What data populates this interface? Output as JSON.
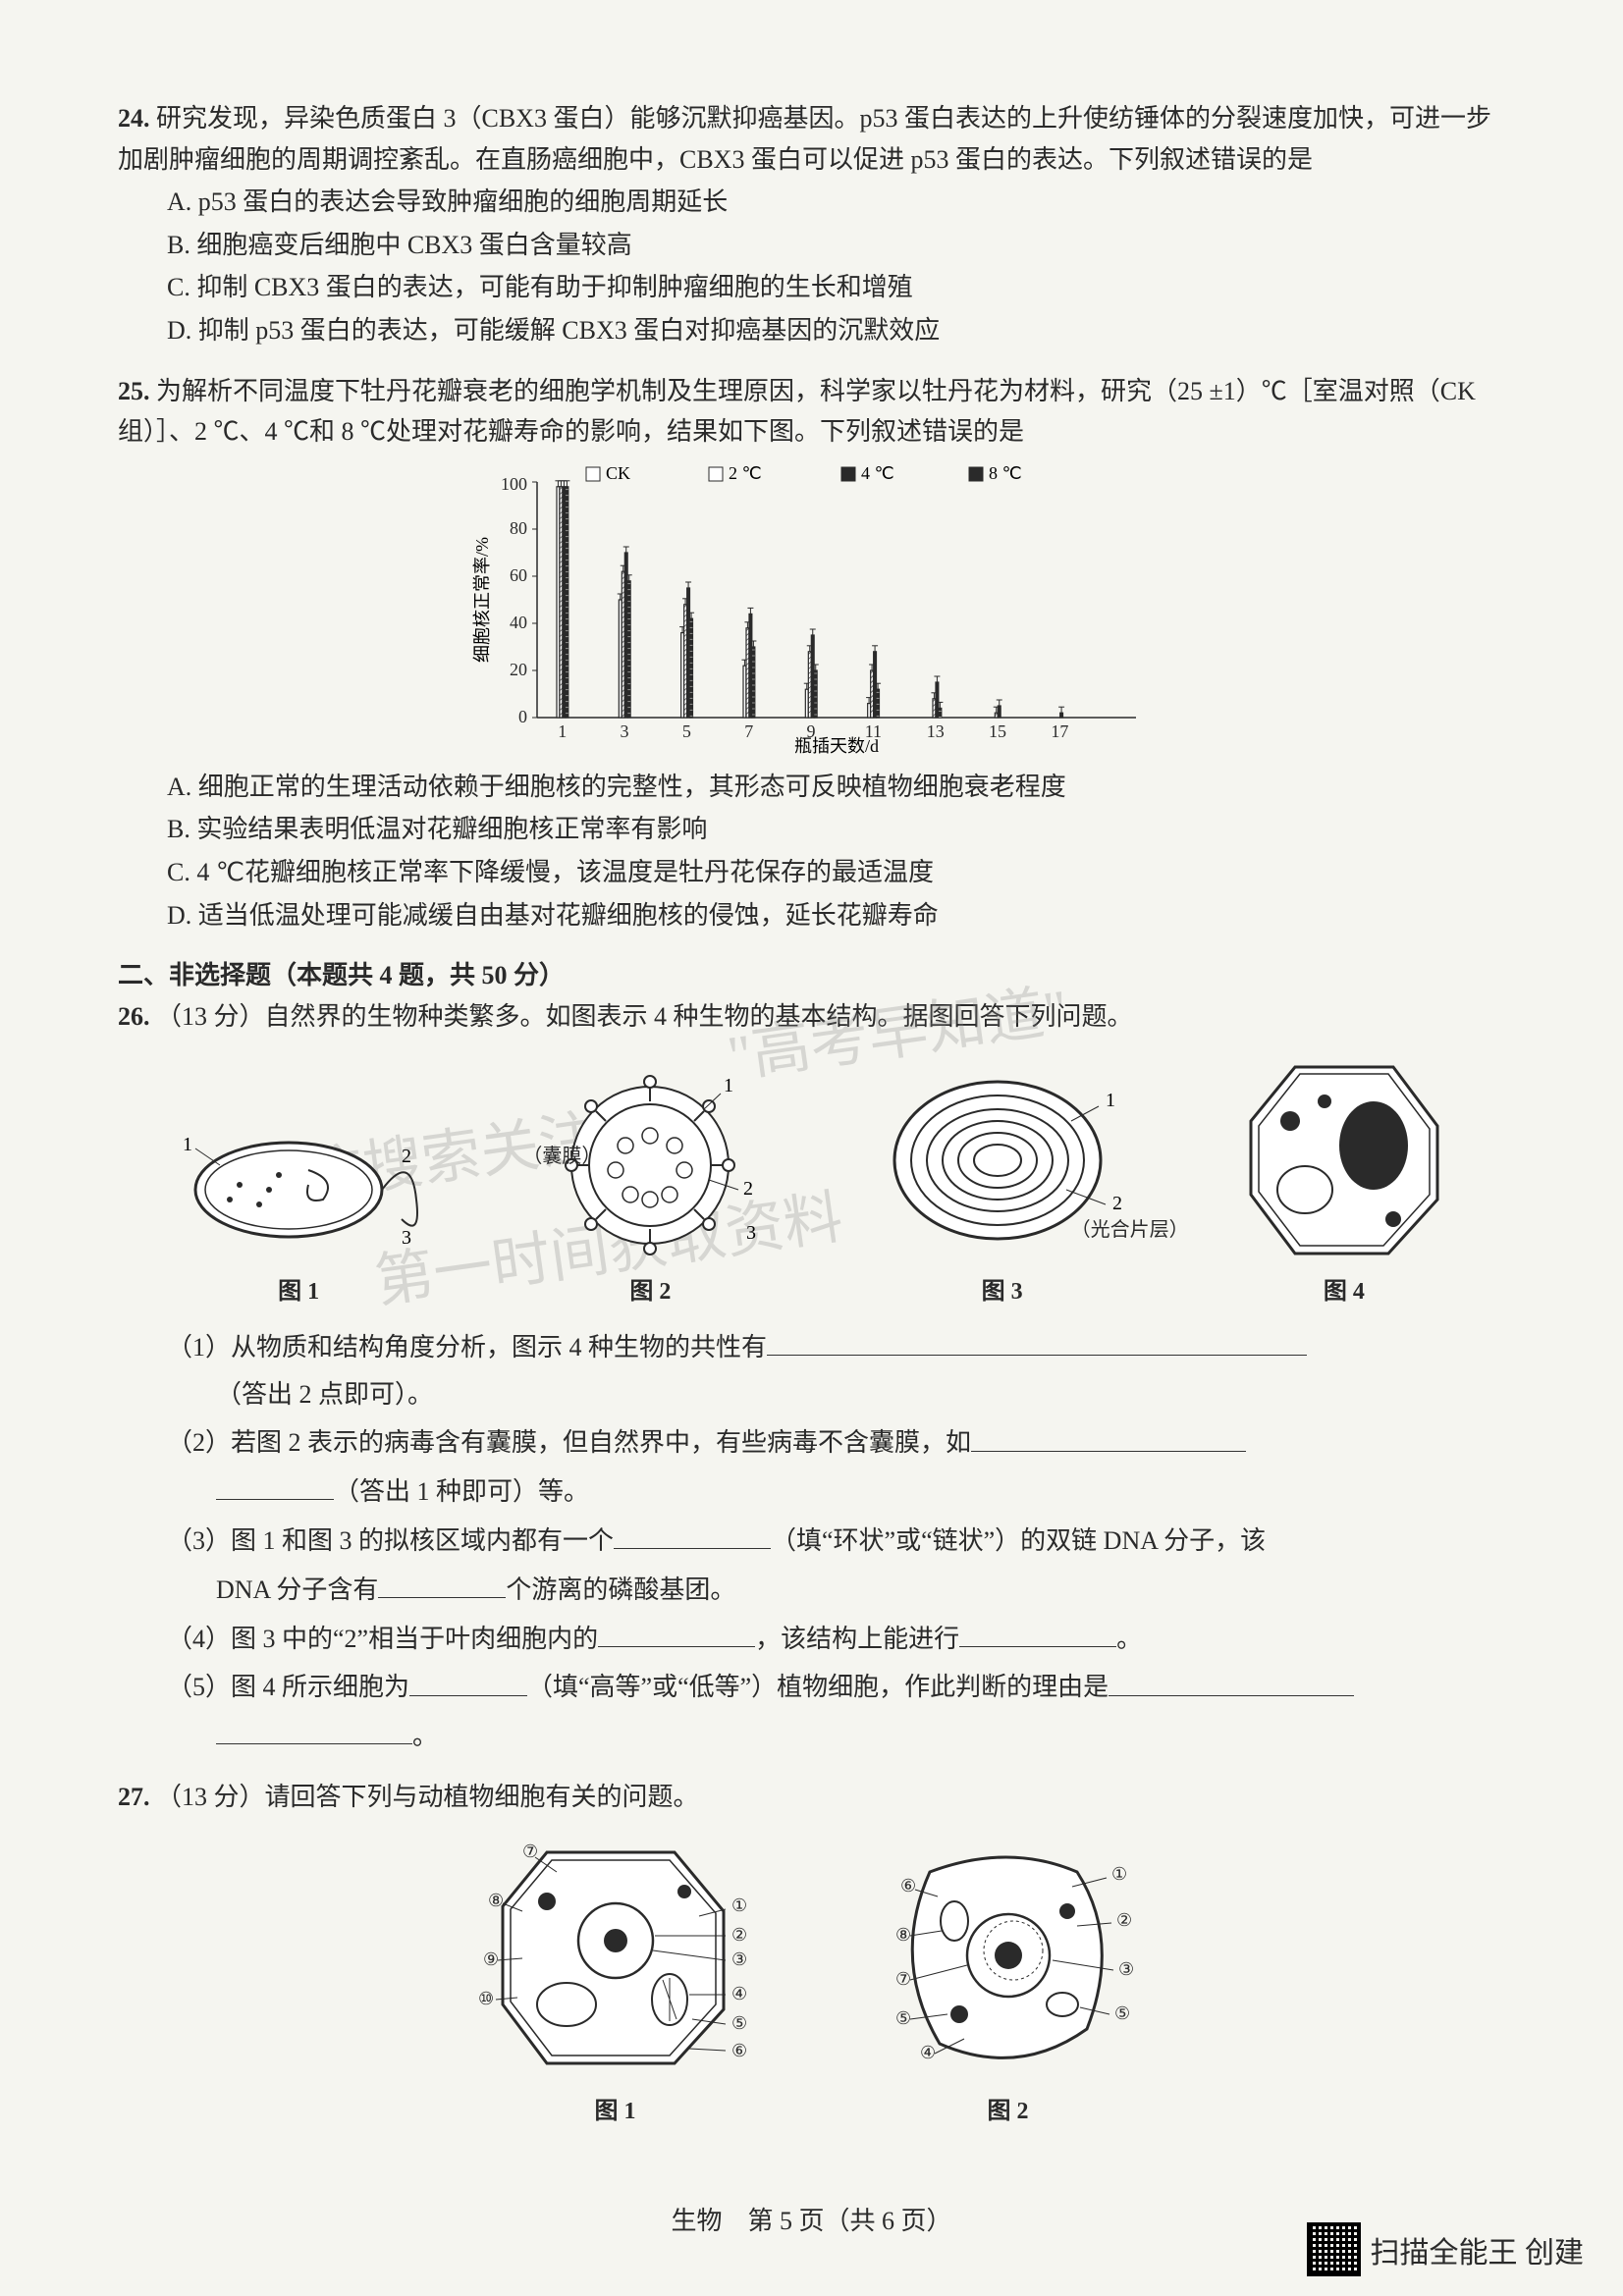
{
  "q24": {
    "num": "24.",
    "stem": "研究发现，异染色质蛋白 3（CBX3 蛋白）能够沉默抑癌基因。p53 蛋白表达的上升使纺锤体的分裂速度加快，可进一步加剧肿瘤细胞的周期调控紊乱。在直肠癌细胞中，CBX3 蛋白可以促进 p53 蛋白的表达。下列叙述错误的是",
    "A": "A. p53 蛋白的表达会导致肿瘤细胞的细胞周期延长",
    "B": "B. 细胞癌变后细胞中 CBX3 蛋白含量较高",
    "C": "C. 抑制 CBX3 蛋白的表达，可能有助于抑制肿瘤细胞的生长和增殖",
    "D": "D. 抑制 p53 蛋白的表达，可能缓解 CBX3 蛋白对抑癌基因的沉默效应"
  },
  "q25": {
    "num": "25.",
    "stem": "为解析不同温度下牡丹花瓣衰老的细胞学机制及生理原因，科学家以牡丹花为材料，研究（25 ±1）℃［室温对照（CK 组）］、2 ℃、4 ℃和 8 ℃处理对花瓣寿命的影响，结果如下图。下列叙述错误的是",
    "chart": {
      "type": "bar",
      "ylabel": "细胞核正常率/%",
      "xlabel": "瓶插天数/d",
      "legend": [
        "CK",
        "2 ℃",
        "4 ℃",
        "8 ℃"
      ],
      "legend_symbols": [
        "□",
        "□",
        "■",
        "■"
      ],
      "categories": [
        "1",
        "3",
        "5",
        "7",
        "9",
        "11",
        "13",
        "15",
        "17"
      ],
      "series_colors": [
        "#ffffff",
        "#ffffff",
        "#2a2a2a",
        "#2a2a2a"
      ],
      "series_patterns": [
        "solid",
        "solid",
        "solid",
        "solid"
      ],
      "ylim": [
        0,
        100
      ],
      "ytick_step": 20,
      "values": {
        "CK": [
          98,
          50,
          36,
          22,
          12,
          6,
          0,
          0,
          0
        ],
        "2C": [
          98,
          62,
          48,
          38,
          28,
          20,
          8,
          2,
          0
        ],
        "4C": [
          98,
          70,
          55,
          44,
          35,
          28,
          15,
          5,
          2
        ],
        "8C": [
          98,
          58,
          42,
          30,
          20,
          12,
          4,
          0,
          0
        ]
      },
      "bar_width": 0.18,
      "background_color": "#f5f5f0",
      "axis_color": "#2a2a2a",
      "label_fontsize": 18
    },
    "A": "A. 细胞正常的生理活动依赖于细胞核的完整性，其形态可反映植物细胞衰老程度",
    "B": "B. 实验结果表明低温对花瓣细胞核正常率有影响",
    "C": "C. 4 ℃花瓣细胞核正常率下降缓慢，该温度是牡丹花保存的最适温度",
    "D": "D. 适当低温处理可能减缓自由基对花瓣细胞核的侵蚀，延长花瓣寿命"
  },
  "section2": "二、非选择题（本题共 4 题，共 50 分）",
  "q26": {
    "num": "26.",
    "stem": "（13 分）自然界的生物种类繁多。如图表示 4 种生物的基本结构。据图回答下列问题。",
    "fig1": "图 1",
    "fig2": "图 2",
    "fig3": "图 3",
    "fig4": "图 4",
    "fig2_label": "（囊膜）",
    "fig3_label": "（光合片层）",
    "sub1a": "（1）从物质和结构角度分析，图示 4 种生物的共性有",
    "sub1b": "（答出 2 点即可）。",
    "sub2a": "（2）若图 2 表示的病毒含有囊膜，但自然界中，有些病毒不含囊膜，如",
    "sub2b": "（答出 1 种即可）等。",
    "sub3a": "（3）图 1 和图 3 的拟核区域内都有一个",
    "sub3b": "（填“环状”或“链状”）的双链 DNA 分子，该",
    "sub3c": "DNA 分子含有",
    "sub3d": "个游离的磷酸基团。",
    "sub4a": "（4）图 3 中的“2”相当于叶肉细胞内的",
    "sub4b": "，该结构上能进行",
    "sub4c": "。",
    "sub5a": "（5）图 4 所示细胞为",
    "sub5b": "（填“高等”或“低等”）植物细胞，作此判断的理由是",
    "sub5c": "。"
  },
  "q27": {
    "num": "27.",
    "stem": "（13 分）请回答下列与动植物细胞有关的问题。",
    "fig1": "图 1",
    "fig2": "图 2"
  },
  "watermarks": {
    "w1": "\"高考早知道\"",
    "w2": "搜信搜索关注",
    "w3": "第一时间获取资料"
  },
  "footer": "生物　第 5 页（共 6 页）",
  "badge": "扫描全能王 创建"
}
